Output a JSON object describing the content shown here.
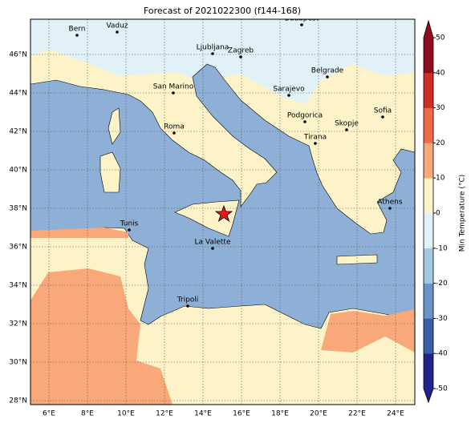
{
  "title": "Forecast of 2021022300 (f144-168)",
  "lon_ticks": [
    {
      "value": 6,
      "label": "6°E"
    },
    {
      "value": 8,
      "label": "8°E"
    },
    {
      "value": 10,
      "label": "10°E"
    },
    {
      "value": 12,
      "label": "12°E"
    },
    {
      "value": 14,
      "label": "14°E"
    },
    {
      "value": 16,
      "label": "16°E"
    },
    {
      "value": 18,
      "label": "18°E"
    },
    {
      "value": 20,
      "label": "20°E"
    },
    {
      "value": 22,
      "label": "22°E"
    },
    {
      "value": 24,
      "label": "24°E"
    }
  ],
  "lat_ticks": [
    {
      "value": 28,
      "label": "28°N"
    },
    {
      "value": 30,
      "label": "30°N"
    },
    {
      "value": 32,
      "label": "32°N"
    },
    {
      "value": 34,
      "label": "34°N"
    },
    {
      "value": 36,
      "label": "36°N"
    },
    {
      "value": 38,
      "label": "38°N"
    },
    {
      "value": 40,
      "label": "40°N"
    },
    {
      "value": 42,
      "label": "42°N"
    },
    {
      "value": 44,
      "label": "44°N"
    },
    {
      "value": 46,
      "label": "46°N"
    }
  ],
  "cities": [
    "Bern",
    "Vaduz",
    "Budapest",
    "Ljubljana",
    "Zagreb",
    "Belgrade",
    "San Marino",
    "Sarajevo",
    "Sofia",
    "Podgorica",
    "Skopje",
    "Roma",
    "Tirana",
    "Athens",
    "Tunis",
    "La Valette",
    "Tripoli"
  ],
  "colorbar": {
    "label": "Min Temperature (°C)",
    "range": [
      -50,
      50
    ],
    "ticks": [
      -50,
      -40,
      -30,
      -20,
      -10,
      0,
      10,
      20,
      30,
      40,
      50
    ],
    "colors": [
      "#23238e",
      "#3a5fa8",
      "#6a93c6",
      "#a5c8e1",
      "#e0f1f8",
      "#fdf3c8",
      "#f9a87a",
      "#ef6a45",
      "#cf2e26",
      "#8e0c1e"
    ]
  }
}
